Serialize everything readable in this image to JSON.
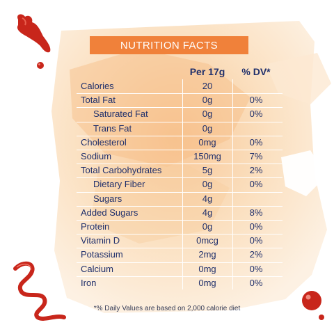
{
  "title": "NUTRITION FACTS",
  "columns": {
    "per": "Per 17g",
    "dv": "% DV*"
  },
  "rows": [
    {
      "name": "Calories",
      "per": "20",
      "dv": "",
      "indent": false
    },
    {
      "name": "Total Fat",
      "per": "0g",
      "dv": "0%",
      "indent": false
    },
    {
      "name": "Saturated Fat",
      "per": "0g",
      "dv": "0%",
      "indent": true
    },
    {
      "name": "Trans Fat",
      "per": "0g",
      "dv": "",
      "indent": true
    },
    {
      "name": "Cholesterol",
      "per": "0mg",
      "dv": "0%",
      "indent": false
    },
    {
      "name": "Sodium",
      "per": "150mg",
      "dv": "7%",
      "indent": false
    },
    {
      "name": "Total Carbohydrates",
      "per": "5g",
      "dv": "2%",
      "indent": false
    },
    {
      "name": "Dietary Fiber",
      "per": "0g",
      "dv": "0%",
      "indent": true
    },
    {
      "name": "Sugars",
      "per": "4g",
      "dv": "",
      "indent": true
    },
    {
      "name": "Added Sugars",
      "per": "4g",
      "dv": "8%",
      "indent": false
    },
    {
      "name": "Protein",
      "per": "0g",
      "dv": "0%",
      "indent": false
    },
    {
      "name": "Vitamin D",
      "per": "0mcg",
      "dv": "0%",
      "indent": false
    },
    {
      "name": "Potassium",
      "per": "2mg",
      "dv": "2%",
      "indent": false
    },
    {
      "name": "Calcium",
      "per": "0mg",
      "dv": "0%",
      "indent": false
    },
    {
      "name": "Iron",
      "per": "0mg",
      "dv": "0%",
      "indent": false
    }
  ],
  "footnote": "*% Daily Values are based on 2,000 calorie diet",
  "colors": {
    "title_bg": "#f0813a",
    "text": "#1f2f6b",
    "sauce": "#c8261b",
    "wash": "#fbe1c2"
  },
  "decorations": [
    "ketchup-splash-top-left",
    "ketchup-squiggle-bottom-left",
    "ketchup-drop-bottom-right"
  ]
}
